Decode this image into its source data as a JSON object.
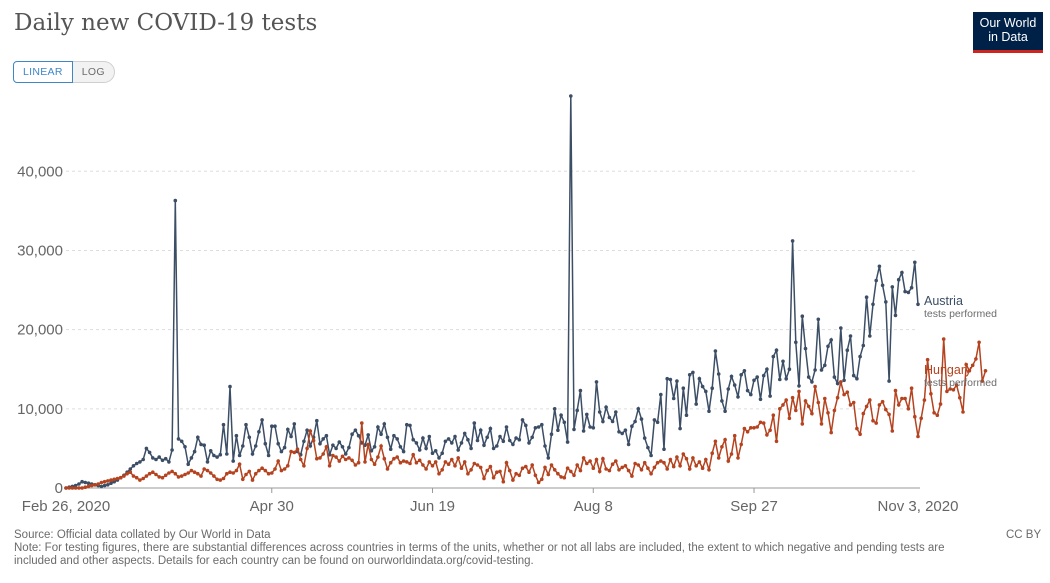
{
  "title": "Daily new COVID-19 tests",
  "logo": {
    "line1": "Our World",
    "line2": "in Data"
  },
  "scale_toggle": {
    "linear": "LINEAR",
    "log": "LOG"
  },
  "footer": {
    "source": "Source: Official data collated by Our World in Data",
    "note_line1": "Note: For testing figures, there are substantial differences across countries in terms of the units, whether or not all labs are included, the extent to which negative and pending tests are",
    "note_line2": "included and other aspects. Details for each country can be found on ourworldindata.org/covid-testing.",
    "license": "CC BY"
  },
  "chart_data": {
    "type": "line",
    "title": "Daily new COVID-19 tests",
    "x_start": "2020-02-26",
    "x_ticks": [
      "Feb 26, 2020",
      "Apr 30",
      "Jun 19",
      "Aug 8",
      "Sep 27",
      "Nov 3, 2020"
    ],
    "y_ticks": [
      "0",
      "10,000",
      "20,000",
      "30,000",
      "40,000"
    ],
    "ylim": [
      0,
      49000
    ],
    "grid": true,
    "legend": "right-end labels",
    "series": [
      {
        "name": "Austria",
        "sublabel": "tests performed",
        "color": "#3c4e66",
        "values": [
          0,
          100,
          200,
          300,
          500,
          800,
          700,
          600,
          500,
          400,
          300,
          200,
          300,
          400,
          600,
          800,
          1000,
          1300,
          1600,
          2000,
          2400,
          2800,
          3100,
          3300,
          3600,
          5000,
          4500,
          3800,
          3600,
          3900,
          3500,
          3700,
          3300,
          4800,
          36300,
          6200,
          5900,
          5200,
          3000,
          3800,
          4600,
          6400,
          5500,
          5400,
          3300,
          4700,
          4100,
          3900,
          4200,
          8000,
          4300,
          12800,
          3400,
          6600,
          4100,
          5300,
          8000,
          6400,
          4300,
          5300,
          7100,
          8600,
          5600,
          4100,
          7800,
          7800,
          5600,
          4600,
          5100,
          7400,
          6500,
          8100,
          4600,
          4200,
          5900,
          7300,
          5300,
          6400,
          8500,
          5600,
          6200,
          6600,
          4200,
          5400,
          5000,
          5800,
          5200,
          4300,
          5100,
          6800,
          7300,
          6600,
          5700,
          5400,
          6700,
          4700,
          5200,
          7700,
          6800,
          8100,
          6400,
          4900,
          6600,
          6200,
          5200,
          4600,
          8000,
          7900,
          6100,
          5700,
          4800,
          6300,
          5000,
          6500,
          4400,
          4700,
          3800,
          4400,
          5900,
          6200,
          5700,
          6500,
          4800,
          5700,
          6900,
          6100,
          5000,
          8200,
          6000,
          7300,
          5400,
          6400,
          7500,
          5000,
          5300,
          6500,
          5900,
          7700,
          6000,
          5500,
          6300,
          6100,
          8600,
          7900,
          5700,
          6400,
          7600,
          7700,
          8000,
          5300,
          3800,
          6800,
          10000,
          7300,
          9200,
          8300,
          5800,
          49500,
          7400,
          9800,
          12300,
          7200,
          9300,
          7700,
          7600,
          13400,
          9600,
          8400,
          10200,
          8900,
          8400,
          9600,
          7100,
          6900,
          7300,
          5500,
          7800,
          8400,
          10000,
          8700,
          6300,
          5100,
          4100,
          8600,
          8300,
          11800,
          4900,
          13800,
          13700,
          11300,
          13500,
          7500,
          12600,
          9200,
          14300,
          14600,
          10600,
          13800,
          12800,
          12200,
          9700,
          12600,
          17300,
          14400,
          11000,
          9700,
          12500,
          14100,
          13000,
          11500,
          14300,
          14800,
          12300,
          11800,
          13600,
          14000,
          11200,
          14200,
          15000,
          11600,
          16600,
          17400,
          13700,
          16000,
          13800,
          15000,
          31200,
          18400,
          12900,
          21700,
          17600,
          14000,
          13400,
          14900,
          21300,
          14900,
          15500,
          17900,
          18700,
          14000,
          13200,
          20200,
          13600,
          17400,
          19200,
          14200,
          13800,
          16600,
          18000,
          24100,
          19200,
          23200,
          26200,
          28000,
          25600,
          23500,
          13500,
          25400,
          21800,
          26300,
          27200,
          24800,
          24700,
          25300,
          28500,
          23200
        ],
        "last_value": 23200
      },
      {
        "name": "Hungary",
        "sublabel": "tests performed",
        "color": "#b5431f",
        "values": [
          0,
          0,
          0,
          0,
          0,
          0,
          100,
          200,
          300,
          400,
          500,
          700,
          800,
          900,
          1000,
          1100,
          1200,
          1300,
          1500,
          1800,
          2000,
          1500,
          1300,
          1000,
          1200,
          1500,
          1800,
          2000,
          1700,
          1400,
          1300,
          1600,
          1900,
          2100,
          1800,
          1400,
          1500,
          1700,
          1900,
          2200,
          2000,
          1800,
          1500,
          2400,
          2200,
          1900,
          1500,
          1100,
          1000,
          1200,
          1800,
          2000,
          1900,
          2200,
          3000,
          1100,
          1700,
          2100,
          1000,
          1800,
          2200,
          2500,
          2200,
          1800,
          1900,
          2400,
          3400,
          2200,
          2400,
          2800,
          4600,
          4500,
          4900,
          3600,
          2800,
          5000,
          7200,
          6000,
          3700,
          3800,
          4300,
          5200,
          2800,
          4100,
          3900,
          3400,
          4000,
          3600,
          3800,
          3500,
          2900,
          3200,
          8200,
          3300,
          5500,
          3600,
          3000,
          3900,
          5300,
          3700,
          2400,
          3200,
          3700,
          3900,
          3200,
          3400,
          3300,
          3100,
          4200,
          3200,
          3500,
          2900,
          2400,
          3300,
          2800,
          3300,
          1800,
          2300,
          3300,
          3000,
          3600,
          2800,
          3800,
          2500,
          3300,
          1800,
          2300,
          3100,
          2900,
          2600,
          1200,
          2200,
          2700,
          1300,
          2000,
          2100,
          800,
          3200,
          2200,
          1000,
          1800,
          1600,
          2500,
          2700,
          2000,
          2900,
          1600,
          700,
          1100,
          2600,
          1700,
          2900,
          2300,
          1800,
          1400,
          1300,
          2500,
          2100,
          1600,
          2900,
          2200,
          3800,
          3100,
          3400,
          2500,
          3600,
          2100,
          3700,
          2400,
          2200,
          3000,
          3400,
          2300,
          2600,
          2800,
          2200,
          1500,
          3100,
          2900,
          2300,
          3200,
          2500,
          1800,
          2600,
          3200,
          3400,
          3200,
          2400,
          3600,
          2700,
          3900,
          2800,
          4300,
          3700,
          2400,
          3800,
          2800,
          3300,
          2500,
          3600,
          2300,
          4400,
          5900,
          3800,
          5200,
          6100,
          3400,
          4300,
          6600,
          3800,
          5500,
          7500,
          7100,
          7600,
          7600,
          7700,
          8300,
          8200,
          6700,
          7300,
          9200,
          5900,
          10000,
          10500,
          11100,
          8800,
          11400,
          9800,
          12200,
          8100,
          11000,
          10300,
          9400,
          12800,
          10800,
          8100,
          11300,
          9500,
          7000,
          9800,
          11400,
          13400,
          11800,
          12100,
          10500,
          10800,
          7500,
          6800,
          9400,
          10300,
          11100,
          8500,
          8200,
          10500,
          10900,
          9900,
          9300,
          7200,
          12300,
          10500,
          11300,
          11300,
          10000,
          12600,
          9000,
          6500,
          8800,
          11100,
          16200,
          11900,
          9500,
          9200,
          10600,
          18800,
          12200,
          12500,
          12400,
          13000,
          11400,
          9600,
          15600,
          14800,
          15500,
          16300,
          18400,
          13500,
          14800
        ],
        "last_value": 14800
      }
    ]
  }
}
